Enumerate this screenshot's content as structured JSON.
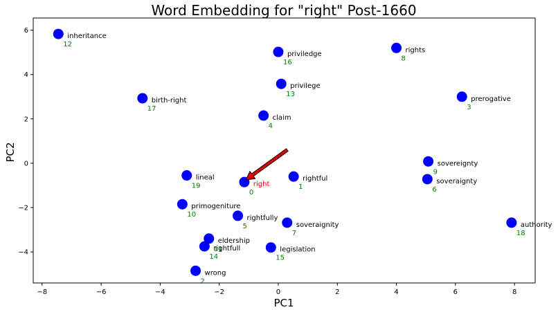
{
  "chart_data": {
    "type": "scatter",
    "title": "Word Embedding for \"right\" Post-1660",
    "xlabel": "PC1",
    "ylabel": "PC2",
    "xlim": [
      -8.3,
      8.7
    ],
    "ylim": [
      -5.4,
      6.55
    ],
    "xticks": [
      -8,
      -6,
      -4,
      -2,
      0,
      2,
      4,
      6,
      8
    ],
    "yticks": [
      -4,
      -2,
      0,
      2,
      4,
      6
    ],
    "xtick_labels": [
      "−8",
      "−6",
      "−4",
      "−2",
      "0",
      "2",
      "4",
      "6",
      "8"
    ],
    "ytick_labels": [
      "−4",
      "−2",
      "0",
      "2",
      "4",
      "6"
    ],
    "grid": false,
    "points": [
      {
        "word": "right",
        "index": "0",
        "x": -1.15,
        "y": -0.85,
        "highlight": true
      },
      {
        "word": "rightful",
        "index": "1",
        "x": 0.52,
        "y": -0.6
      },
      {
        "word": "wrong",
        "index": "2",
        "x": -2.8,
        "y": -4.85
      },
      {
        "word": "prerogative",
        "index": "3",
        "x": 6.22,
        "y": 3.0
      },
      {
        "word": "claim",
        "index": "4",
        "x": -0.5,
        "y": 2.15
      },
      {
        "word": "rightfully",
        "index": "5",
        "x": -1.37,
        "y": -2.37
      },
      {
        "word": "soveraignty",
        "index": "6",
        "x": 5.05,
        "y": -0.72
      },
      {
        "word": "soveraignity",
        "index": "7",
        "x": 0.3,
        "y": -2.68
      },
      {
        "word": "rights",
        "index": "8",
        "x": 4.0,
        "y": 5.2
      },
      {
        "word": "sovereignty",
        "index": "9",
        "x": 5.08,
        "y": 0.08
      },
      {
        "word": "primogeniture",
        "index": "10",
        "x": -3.25,
        "y": -1.85
      },
      {
        "word": "eldership",
        "index": "11",
        "x": -2.35,
        "y": -3.4
      },
      {
        "word": "inheritance",
        "index": "12",
        "x": -7.45,
        "y": 5.83
      },
      {
        "word": "privilege",
        "index": "13",
        "x": 0.1,
        "y": 3.58
      },
      {
        "word": "rightfull",
        "index": "14",
        "x": -2.5,
        "y": -3.75
      },
      {
        "word": "legislation",
        "index": "15",
        "x": -0.25,
        "y": -3.8
      },
      {
        "word": "priviledge",
        "index": "16",
        "x": 0.0,
        "y": 5.02
      },
      {
        "word": "birth-right",
        "index": "17",
        "x": -4.6,
        "y": 2.93
      },
      {
        "word": "authority",
        "index": "18",
        "x": 7.9,
        "y": -2.68
      },
      {
        "word": "lineal",
        "index": "19",
        "x": -3.1,
        "y": -0.55
      }
    ],
    "arrow": {
      "from": [
        0.3,
        0.6
      ],
      "to": [
        -1.1,
        -0.75
      ]
    },
    "colors": {
      "marker": "#0000ff",
      "highlight_label": "#ff0000",
      "index_label": "#008000",
      "arrow_fill": "#dd0000",
      "arrow_edge": "#000000"
    }
  }
}
